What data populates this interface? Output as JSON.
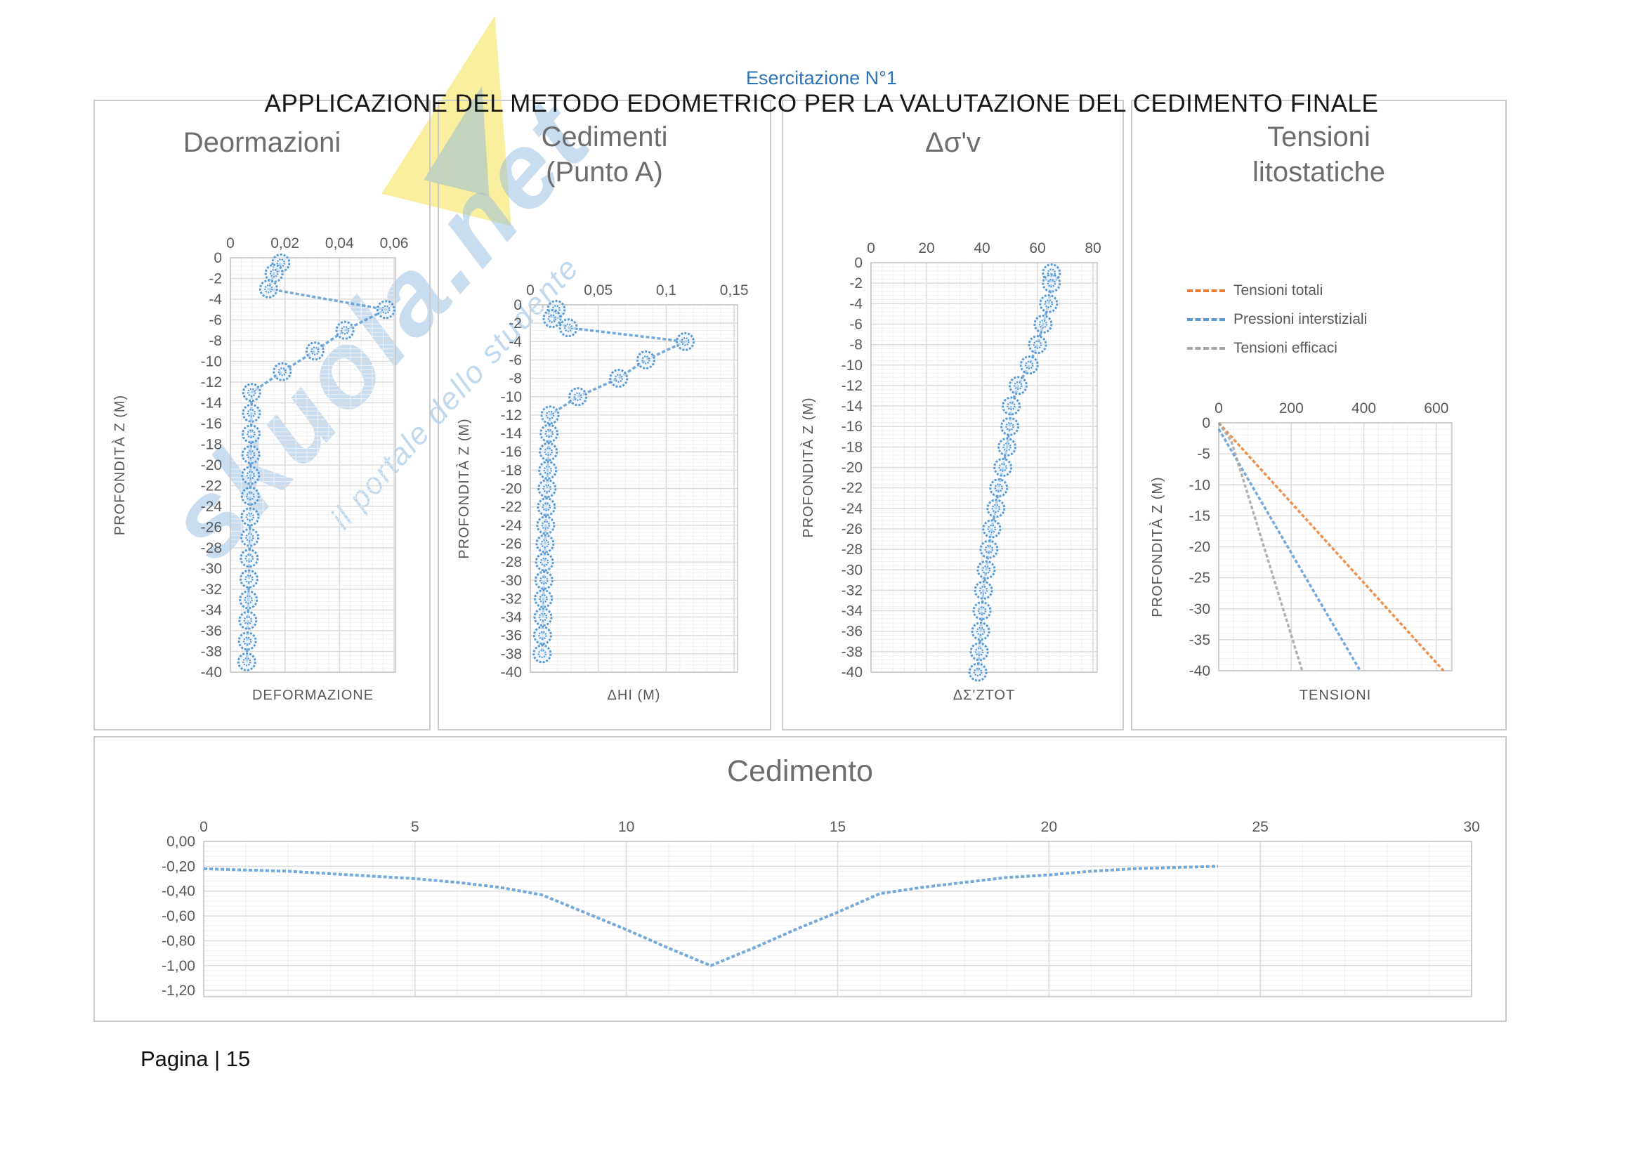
{
  "page": {
    "subtitle": "Esercitazione N°1",
    "title": "APPLICAZIONE DEL METODO EDOMETRICO PER LA VALUTAZIONE DEL CEDIMENTO FINALE",
    "page_label": "Pagina | 15"
  },
  "watermark": {
    "brand": "skuola.net",
    "tagline": "il portale dello studente"
  },
  "colors": {
    "accent_blue": "#5B9BD5",
    "accent_orange": "#ED7D31",
    "accent_gray": "#A5A5A5",
    "grid_major": "#DCDCDC",
    "grid_minor": "#F0F0F0",
    "tick_text": "#595959",
    "title_text": "#6D6D6D",
    "subtitle_blue": "#2E74B5"
  },
  "chart_data": [
    {
      "type": "scatter",
      "title": "Deormazioni",
      "xlabel": "DEFORMAZIONE",
      "ylabel": "PROFONDITÀ Z (M)",
      "legend_position": "none",
      "grid": true,
      "xlim": [
        0,
        0.0605
      ],
      "ylim": [
        -40,
        0
      ],
      "x_ticks": [
        0,
        0.02,
        0.04,
        0.06
      ],
      "x_tick_labels": [
        "0",
        "0,02",
        "0,04",
        "0,06"
      ],
      "y_ticks": [
        0,
        -2,
        -4,
        -6,
        -8,
        -10,
        -12,
        -14,
        -16,
        -18,
        -20,
        -22,
        -24,
        -26,
        -28,
        -30,
        -32,
        -34,
        -36,
        -38,
        -40
      ],
      "y_tick_labels": [
        "0",
        "-2",
        "-4",
        "-6",
        "-8",
        "-10",
        "-12",
        "-14",
        "-16",
        "-18",
        "-20",
        "-22",
        "-24",
        "-26",
        "-28",
        "-30",
        "-32",
        "-34",
        "-36",
        "-38",
        "-40"
      ],
      "series": [
        {
          "name": "Deformazione",
          "color": "#5B9BD5",
          "markers": true,
          "points": [
            [
              0.0185,
              -0.5
            ],
            [
              0.016,
              -1.5
            ],
            [
              0.014,
              -3
            ],
            [
              0.057,
              -5
            ],
            [
              0.042,
              -7
            ],
            [
              0.031,
              -9
            ],
            [
              0.019,
              -11
            ],
            [
              0.0078,
              -13
            ],
            [
              0.0077,
              -15
            ],
            [
              0.0076,
              -17
            ],
            [
              0.0075,
              -19
            ],
            [
              0.0074,
              -21
            ],
            [
              0.0073,
              -23
            ],
            [
              0.0072,
              -25
            ],
            [
              0.0071,
              -27
            ],
            [
              0.0069,
              -29
            ],
            [
              0.0068,
              -31
            ],
            [
              0.0066,
              -33
            ],
            [
              0.0064,
              -35
            ],
            [
              0.0062,
              -37
            ],
            [
              0.006,
              -39
            ]
          ]
        }
      ]
    },
    {
      "type": "scatter",
      "title": "Cedimenti (Punto A)",
      "xlabel": "ΔHI (M)",
      "ylabel": "PROFONDITÀ Z (M)",
      "legend_position": "none",
      "grid": true,
      "xlim": [
        0,
        0.1525
      ],
      "ylim": [
        -40,
        0
      ],
      "x_ticks": [
        0,
        0.05,
        0.1,
        0.15
      ],
      "x_tick_labels": [
        "0",
        "0,05",
        "0,1",
        "0,15"
      ],
      "y_ticks": [
        0,
        -2,
        -4,
        -6,
        -8,
        -10,
        -12,
        -14,
        -16,
        -18,
        -20,
        -22,
        -24,
        -26,
        -28,
        -30,
        -32,
        -34,
        -36,
        -38,
        -40
      ],
      "y_tick_labels": [
        "0",
        "-2",
        "-4",
        "-6",
        "-8",
        "-10",
        "-12",
        "-14",
        "-16",
        "-18",
        "-20",
        "-22",
        "-24",
        "-26",
        "-28",
        "-30",
        "-32",
        "-34",
        "-36",
        "-38",
        "-40"
      ],
      "series": [
        {
          "name": "Cedimento ΔHi",
          "color": "#5B9BD5",
          "markers": true,
          "points": [
            [
              0.019,
              -0.5
            ],
            [
              0.016,
              -1.5
            ],
            [
              0.028,
              -2.5
            ],
            [
              0.114,
              -4
            ],
            [
              0.085,
              -6
            ],
            [
              0.065,
              -8
            ],
            [
              0.035,
              -10
            ],
            [
              0.0145,
              -12
            ],
            [
              0.0138,
              -14
            ],
            [
              0.0133,
              -16
            ],
            [
              0.0128,
              -18
            ],
            [
              0.0123,
              -20
            ],
            [
              0.0118,
              -22
            ],
            [
              0.0113,
              -24
            ],
            [
              0.0108,
              -26
            ],
            [
              0.0104,
              -28
            ],
            [
              0.01,
              -30
            ],
            [
              0.0096,
              -32
            ],
            [
              0.0093,
              -34
            ],
            [
              0.009,
              -36
            ],
            [
              0.0087,
              -38
            ]
          ]
        }
      ]
    },
    {
      "type": "scatter",
      "title": "Δσ'v",
      "xlabel": "ΔΣ'ZTOT",
      "ylabel": "PROFONDITÀ Z (M)",
      "legend_position": "none",
      "grid": true,
      "xlim": [
        0,
        81.5
      ],
      "ylim": [
        -40,
        0
      ],
      "x_ticks": [
        0,
        20,
        40,
        60,
        80
      ],
      "x_tick_labels": [
        "0",
        "20",
        "40",
        "60",
        "80"
      ],
      "y_ticks": [
        0,
        -2,
        -4,
        -6,
        -8,
        -10,
        -12,
        -14,
        -16,
        -18,
        -20,
        -22,
        -24,
        -26,
        -28,
        -30,
        -32,
        -34,
        -36,
        -38,
        -40
      ],
      "y_tick_labels": [
        "0",
        "-2",
        "-4",
        "-6",
        "-8",
        "-10",
        "-12",
        "-14",
        "-16",
        "-18",
        "-20",
        "-22",
        "-24",
        "-26",
        "-28",
        "-30",
        "-32",
        "-34",
        "-36",
        "-38",
        "-40"
      ],
      "series": [
        {
          "name": "Δσ'z tot",
          "color": "#5B9BD5",
          "markers": true,
          "points": [
            [
              65,
              -1
            ],
            [
              65,
              -2
            ],
            [
              64,
              -4
            ],
            [
              62,
              -6
            ],
            [
              60,
              -8
            ],
            [
              57,
              -10
            ],
            [
              53,
              -12
            ],
            [
              50.5,
              -14
            ],
            [
              50,
              -16
            ],
            [
              49,
              -18
            ],
            [
              47.5,
              -20
            ],
            [
              46,
              -22
            ],
            [
              45,
              -24
            ],
            [
              43.5,
              -26
            ],
            [
              42.5,
              -28
            ],
            [
              41.5,
              -30
            ],
            [
              40.5,
              -32
            ],
            [
              40,
              -34
            ],
            [
              39.5,
              -36
            ],
            [
              39,
              -38
            ],
            [
              38.5,
              -40
            ]
          ]
        }
      ]
    },
    {
      "type": "line",
      "title": "Tensioni litostatiche",
      "xlabel": "TENSIONI",
      "ylabel": "PROFONDITÀ Z (M)",
      "legend_position": "top",
      "grid": true,
      "xlim": [
        0,
        643
      ],
      "ylim": [
        -40,
        0
      ],
      "x_ticks": [
        0,
        200,
        400,
        600
      ],
      "x_tick_labels": [
        "0",
        "200",
        "400",
        "600"
      ],
      "y_ticks": [
        0,
        -5,
        -10,
        -15,
        -20,
        -25,
        -30,
        -35,
        -40
      ],
      "y_tick_labels": [
        "0",
        "-5",
        "-10",
        "-15",
        "-20",
        "-25",
        "-30",
        "-35",
        "-40"
      ],
      "series": [
        {
          "name": "Tensioni totali",
          "color": "#ED7D31",
          "markers": false,
          "points": [
            [
              0,
              0
            ],
            [
              620,
              -40
            ]
          ]
        },
        {
          "name": "Pressioni interstiziali",
          "color": "#5B9BD5",
          "markers": false,
          "points": [
            [
              0,
              -1
            ],
            [
              390,
              -40
            ]
          ]
        },
        {
          "name": "Tensioni efficaci",
          "color": "#A5A5A5",
          "markers": false,
          "points": [
            [
              0,
              0
            ],
            [
              35,
              -3
            ],
            [
              230,
              -40
            ]
          ]
        }
      ]
    },
    {
      "type": "line",
      "title": "Cedimento",
      "xlabel": "",
      "ylabel": "",
      "legend_position": "none",
      "grid": true,
      "xlim": [
        0,
        30
      ],
      "ylim": [
        -1.25,
        0
      ],
      "x_ticks": [
        0,
        5,
        10,
        15,
        20,
        25,
        30
      ],
      "x_tick_labels": [
        "0",
        "5",
        "10",
        "15",
        "20",
        "25",
        "30"
      ],
      "y_ticks": [
        0,
        -0.2,
        -0.4,
        -0.6,
        -0.8,
        -1.0,
        -1.2
      ],
      "y_tick_labels": [
        "0,00",
        "-0,20",
        "-0,40",
        "-0,60",
        "-0,80",
        "-1,00",
        "-1,20"
      ],
      "series": [
        {
          "name": "Cedimento",
          "color": "#5B9BD5",
          "markers": false,
          "points": [
            [
              0,
              -0.22
            ],
            [
              1,
              -0.23
            ],
            [
              2,
              -0.24
            ],
            [
              3,
              -0.26
            ],
            [
              4,
              -0.28
            ],
            [
              5,
              -0.3
            ],
            [
              6,
              -0.33
            ],
            [
              7,
              -0.37
            ],
            [
              8,
              -0.43
            ],
            [
              9,
              -0.57
            ],
            [
              10,
              -0.71
            ],
            [
              11,
              -0.86
            ],
            [
              12,
              -1.0
            ],
            [
              13,
              -0.86
            ],
            [
              14,
              -0.71
            ],
            [
              15,
              -0.57
            ],
            [
              16,
              -0.42
            ],
            [
              17,
              -0.37
            ],
            [
              18,
              -0.33
            ],
            [
              19,
              -0.29
            ],
            [
              20,
              -0.27
            ],
            [
              21,
              -0.24
            ],
            [
              22,
              -0.22
            ],
            [
              23,
              -0.21
            ],
            [
              24,
              -0.2
            ]
          ]
        }
      ]
    }
  ]
}
